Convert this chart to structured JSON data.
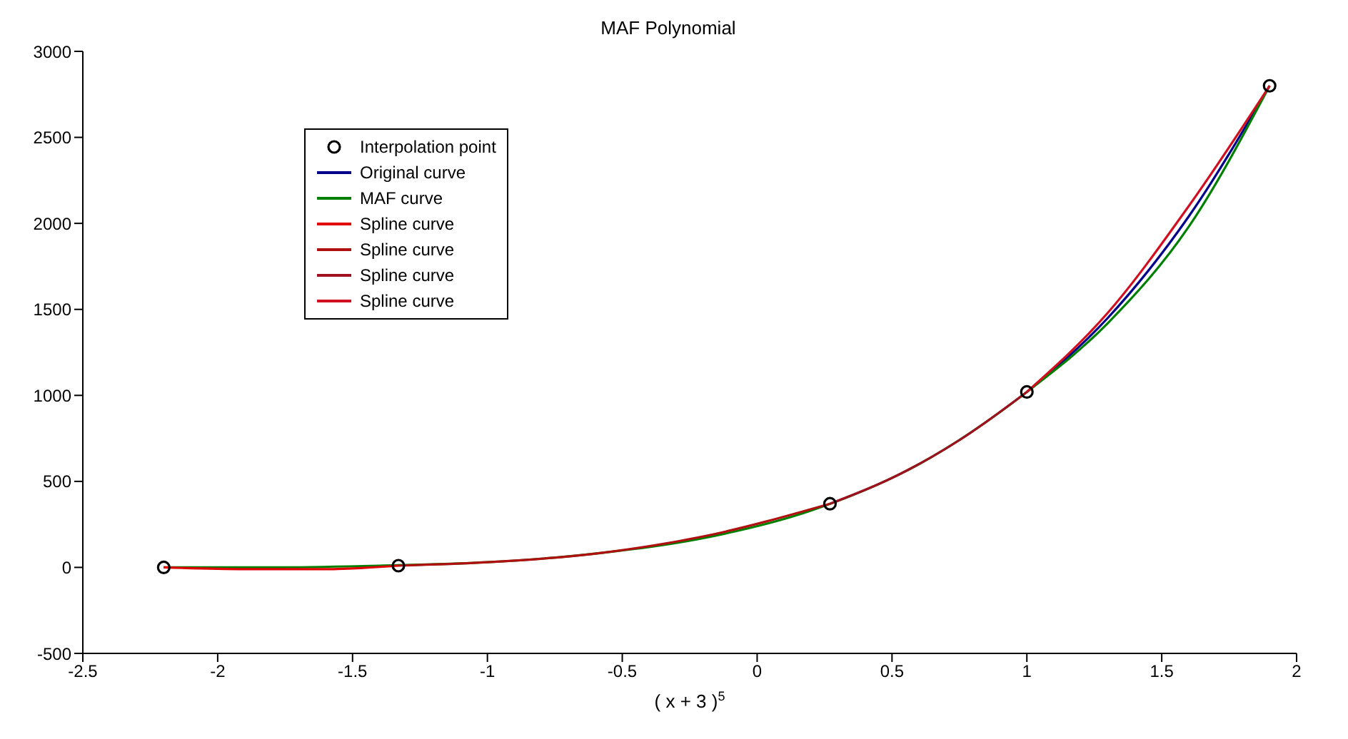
{
  "chart_data": {
    "type": "line",
    "title": "MAF Polynomial",
    "xlabel": "( x + 3 )$^{5}$",
    "xlim": [
      -2.5,
      2
    ],
    "xticks": [
      -2.5,
      -2,
      -1.5,
      -1,
      -0.5,
      0,
      0.5,
      1,
      1.5,
      2
    ],
    "ylim": [
      -500,
      3000
    ],
    "yticks": [
      -500,
      0,
      500,
      1000,
      1500,
      2000,
      2500,
      3000
    ],
    "grid": false,
    "legend": "top left",
    "series": [
      {
        "name": "Interpolation point",
        "type": "scatter",
        "marker": "circle",
        "color": "#000000",
        "x": [
          -2.2,
          -1.33,
          0.27,
          1.0,
          1.9
        ],
        "values": [
          0,
          10,
          370,
          1020,
          2800
        ]
      },
      {
        "name": "Original curve",
        "type": "line",
        "marker": "none",
        "color": "#00008b",
        "x": [
          1.0,
          1.3,
          1.6,
          1.9
        ],
        "values": [
          1020,
          1450,
          2040,
          2800
        ]
      },
      {
        "name": "MAF curve",
        "type": "line",
        "marker": "none",
        "color": "#008000",
        "x": [
          -2.2,
          -1.8,
          -1.4,
          -1.0,
          -0.6,
          -0.2,
          0.2,
          0.6,
          1.0,
          1.3,
          1.6,
          1.9
        ],
        "values": [
          0,
          0,
          10,
          30,
          80,
          170,
          330,
          600,
          1020,
          1420,
          1980,
          2800
        ]
      },
      {
        "name": "Spline curve",
        "type": "line",
        "marker": "none",
        "color": "#e00000",
        "x": [
          -2.2,
          -1.9,
          -1.6,
          -1.33
        ],
        "values": [
          0,
          -10,
          -10,
          10
        ]
      },
      {
        "name": "Spline curve",
        "type": "line",
        "marker": "none",
        "color": "#b01010",
        "x": [
          -1.33,
          -1.0,
          -0.6,
          -0.2,
          0.27
        ],
        "values": [
          10,
          30,
          80,
          180,
          370
        ]
      },
      {
        "name": "Spline curve",
        "type": "line",
        "marker": "none",
        "color": "#a01020",
        "x": [
          0.27,
          0.5,
          0.75,
          1.0
        ],
        "values": [
          370,
          520,
          740,
          1020
        ]
      },
      {
        "name": "Spline curve",
        "type": "line",
        "marker": "none",
        "color": "#d01020",
        "x": [
          1.0,
          1.3,
          1.6,
          1.9
        ],
        "values": [
          1020,
          1480,
          2100,
          2800
        ]
      }
    ]
  }
}
